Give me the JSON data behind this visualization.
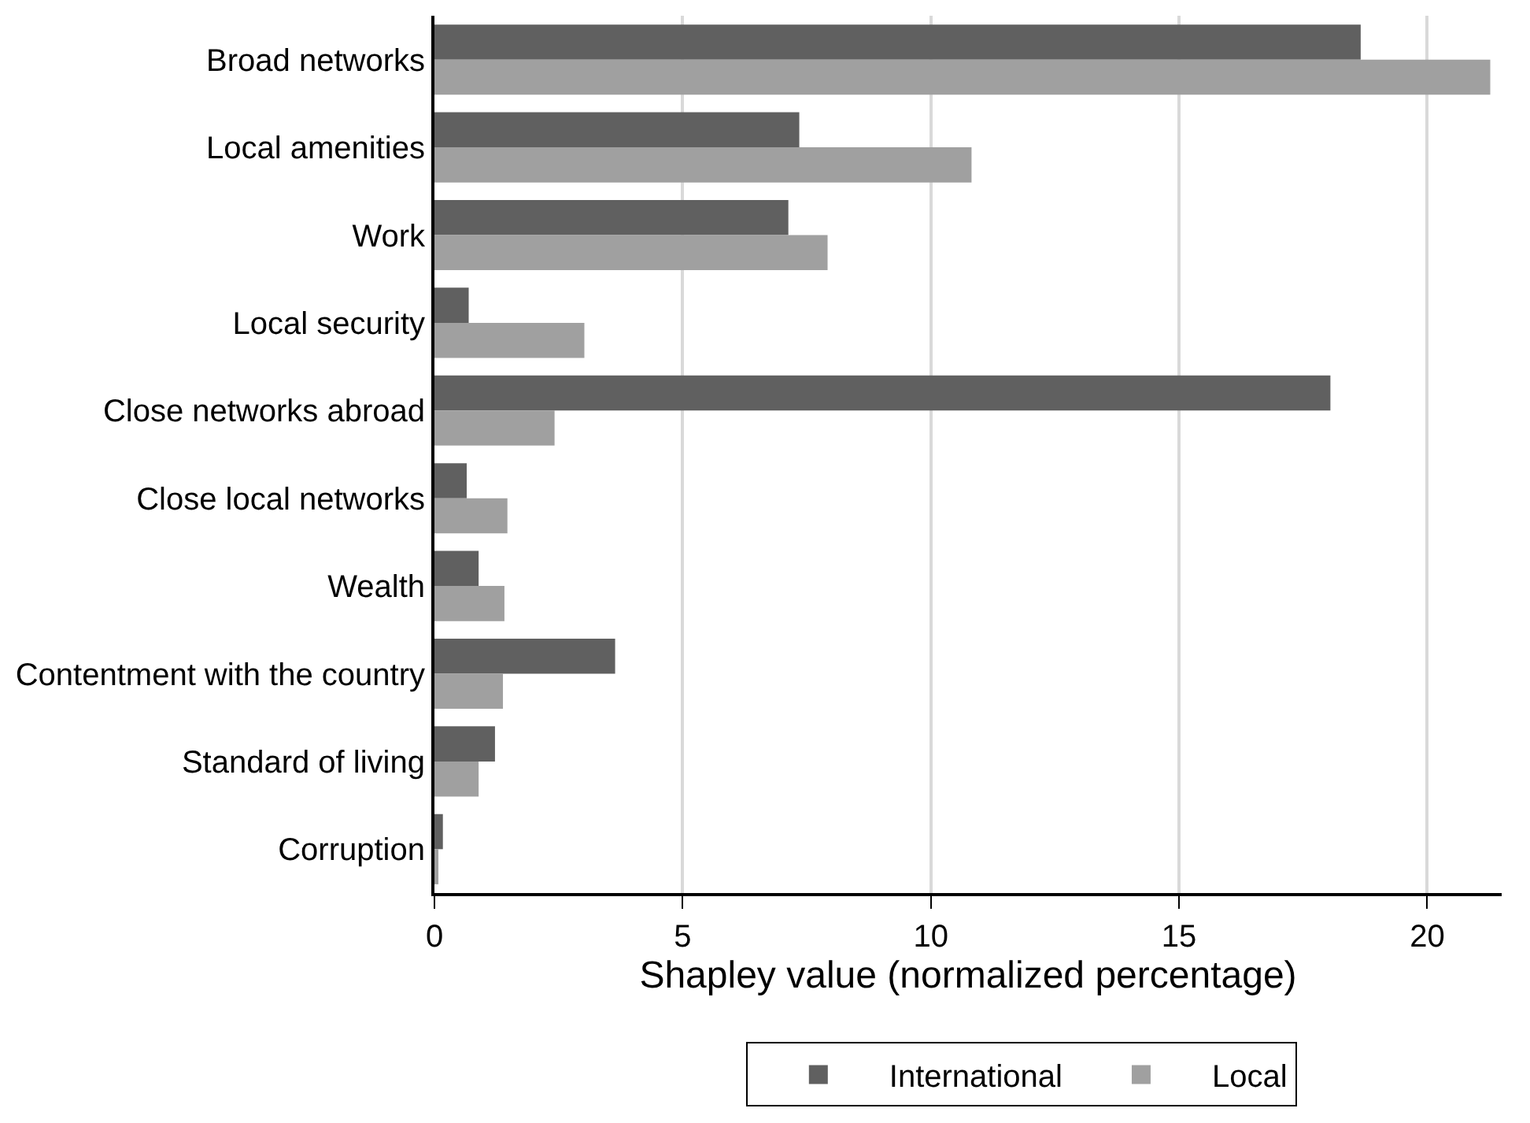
{
  "chart_data": {
    "type": "bar",
    "orientation": "horizontal",
    "xlabel": "Shapley value (normalized percentage)",
    "categories": [
      "Broad networks",
      "Local amenities",
      "Work",
      "Local security",
      "Close networks abroad",
      "Close local networks",
      "Wealth",
      "Contentment with the country",
      "Standard of living",
      "Corruption"
    ],
    "series": [
      {
        "name": "International",
        "color": "#606060",
        "values": [
          18.66,
          7.35,
          7.13,
          0.69,
          18.05,
          0.65,
          0.89,
          3.64,
          1.22,
          0.17
        ]
      },
      {
        "name": "Local",
        "color": "#a0a0a0",
        "values": [
          21.27,
          10.82,
          7.92,
          3.02,
          2.42,
          1.47,
          1.41,
          1.38,
          0.89,
          0.08
        ]
      }
    ],
    "xlim": [
      0,
      21.5
    ],
    "xticks": [
      0,
      5,
      10,
      15,
      20
    ],
    "grid": "x",
    "legend": "bottom"
  }
}
